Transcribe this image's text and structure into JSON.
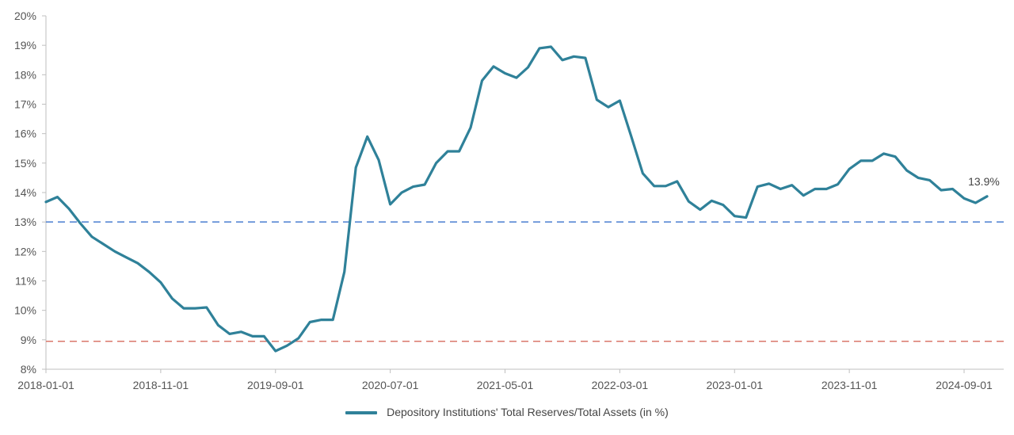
{
  "chart_data": {
    "type": "line",
    "x_ticks": [
      "2018-01-01",
      "2018-11-01",
      "2019-09-01",
      "2020-07-01",
      "2021-05-01",
      "2022-03-01",
      "2023-01-01",
      "2023-11-01",
      "2024-09-01"
    ],
    "y_ticks": [
      "8%",
      "9%",
      "10%",
      "11%",
      "12%",
      "13%",
      "14%",
      "15%",
      "16%",
      "17%",
      "18%",
      "19%",
      "20%"
    ],
    "ylim": [
      8,
      20
    ],
    "grid": false,
    "legend_position": "bottom-center",
    "series": [
      {
        "name": "Depository Institutions' Total Reserves/Total Assets (in %)",
        "color": "#2f8199",
        "x": [
          "2018-01",
          "2018-02",
          "2018-03",
          "2018-04",
          "2018-05",
          "2018-06",
          "2018-07",
          "2018-08",
          "2018-09",
          "2018-10",
          "2018-11",
          "2018-12",
          "2019-01",
          "2019-02",
          "2019-03",
          "2019-04",
          "2019-05",
          "2019-06",
          "2019-07",
          "2019-08",
          "2019-09",
          "2019-10",
          "2019-11",
          "2019-12",
          "2020-01",
          "2020-02",
          "2020-03",
          "2020-04",
          "2020-05",
          "2020-06",
          "2020-07",
          "2020-08",
          "2020-09",
          "2020-10",
          "2020-11",
          "2020-12",
          "2021-01",
          "2021-02",
          "2021-03",
          "2021-04",
          "2021-05",
          "2021-06",
          "2021-07",
          "2021-08",
          "2021-09",
          "2021-10",
          "2021-11",
          "2021-12",
          "2022-01",
          "2022-02",
          "2022-03",
          "2022-04",
          "2022-05",
          "2022-06",
          "2022-07",
          "2022-08",
          "2022-09",
          "2022-10",
          "2022-11",
          "2022-12",
          "2023-01",
          "2023-02",
          "2023-03",
          "2023-04",
          "2023-05",
          "2023-06",
          "2023-07",
          "2023-08",
          "2023-09",
          "2023-10",
          "2023-11",
          "2023-12",
          "2024-01",
          "2024-02",
          "2024-03",
          "2024-04",
          "2024-05",
          "2024-06",
          "2024-07",
          "2024-08",
          "2024-09",
          "2024-10",
          "2024-11"
        ],
        "values": [
          13.68,
          13.85,
          13.45,
          12.95,
          12.5,
          12.25,
          12.0,
          11.8,
          11.6,
          11.3,
          10.95,
          10.4,
          10.07,
          10.07,
          10.1,
          9.5,
          9.2,
          9.27,
          9.12,
          9.12,
          8.62,
          8.8,
          9.05,
          9.6,
          9.68,
          9.68,
          11.3,
          14.85,
          15.9,
          15.1,
          13.6,
          14.0,
          14.2,
          14.27,
          15.0,
          15.4,
          15.4,
          16.2,
          17.8,
          18.28,
          18.05,
          17.9,
          18.25,
          18.9,
          18.95,
          18.5,
          18.62,
          18.57,
          17.15,
          16.9,
          17.12,
          15.9,
          14.65,
          14.22,
          14.22,
          14.38,
          13.7,
          13.42,
          13.72,
          13.58,
          13.2,
          13.15,
          14.2,
          14.3,
          14.12,
          14.25,
          13.9,
          14.12,
          14.12,
          14.28,
          14.8,
          15.08,
          15.08,
          15.32,
          15.22,
          14.75,
          14.5,
          14.42,
          14.08,
          14.12,
          13.8,
          13.65,
          13.87
        ]
      }
    ],
    "annotations": [
      {
        "label": "13.9%",
        "at": "last-point"
      }
    ],
    "reference_lines": [
      {
        "value": 13.0,
        "color": "#4a7fd0",
        "style": "dashed"
      },
      {
        "value": 8.95,
        "color": "#d9776b",
        "style": "dashed"
      }
    ]
  }
}
